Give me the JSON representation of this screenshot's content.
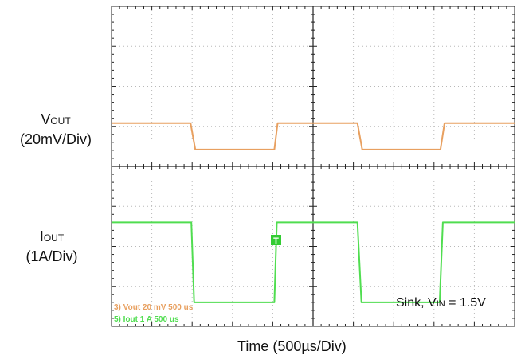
{
  "chart_data": {
    "type": "line",
    "x_divisions": 10,
    "y_divisions": 8,
    "x_time_per_div": "500µs",
    "grid": "dotted",
    "center_crosshair": true,
    "series": [
      {
        "name": "Vout",
        "color": "#e8a060",
        "unit_per_div": "20mV",
        "baseline_div": 4,
        "points": [
          [
            0,
            1.08
          ],
          [
            1.96,
            1.08
          ],
          [
            2.08,
            0.42
          ],
          [
            4.04,
            0.42
          ],
          [
            4.12,
            1.08
          ],
          [
            6.1,
            1.08
          ],
          [
            6.22,
            0.42
          ],
          [
            8.16,
            0.42
          ],
          [
            8.26,
            1.08
          ],
          [
            10,
            1.08
          ]
        ]
      },
      {
        "name": "Iout",
        "color": "#50dd50",
        "unit_per_div": "1A",
        "baseline_div": 0,
        "points": [
          [
            0,
            2.6
          ],
          [
            1.98,
            2.6
          ],
          [
            2.05,
            0.6
          ],
          [
            4.04,
            0.6
          ],
          [
            4.1,
            2.6
          ],
          [
            6.1,
            2.6
          ],
          [
            6.2,
            0.6
          ],
          [
            8.14,
            0.6
          ],
          [
            8.22,
            2.6
          ],
          [
            10,
            2.6
          ]
        ]
      }
    ],
    "trigger_marker": "T",
    "xlabel": "Time  (500µs/Div)",
    "annotation": {
      "prefix": "Sink, V",
      "sub": "IN",
      "suffix": " = 1.5V"
    },
    "ylabels": [
      {
        "main": "V",
        "sub": "OUT",
        "scale": "(20mV/Div)"
      },
      {
        "main": "I",
        "sub": "OUT",
        "scale": "(1A/Div)"
      }
    ],
    "scope_readout": [
      "3) Vout  20 mV    500 us",
      "5) Iout  1  A    500 us"
    ]
  }
}
